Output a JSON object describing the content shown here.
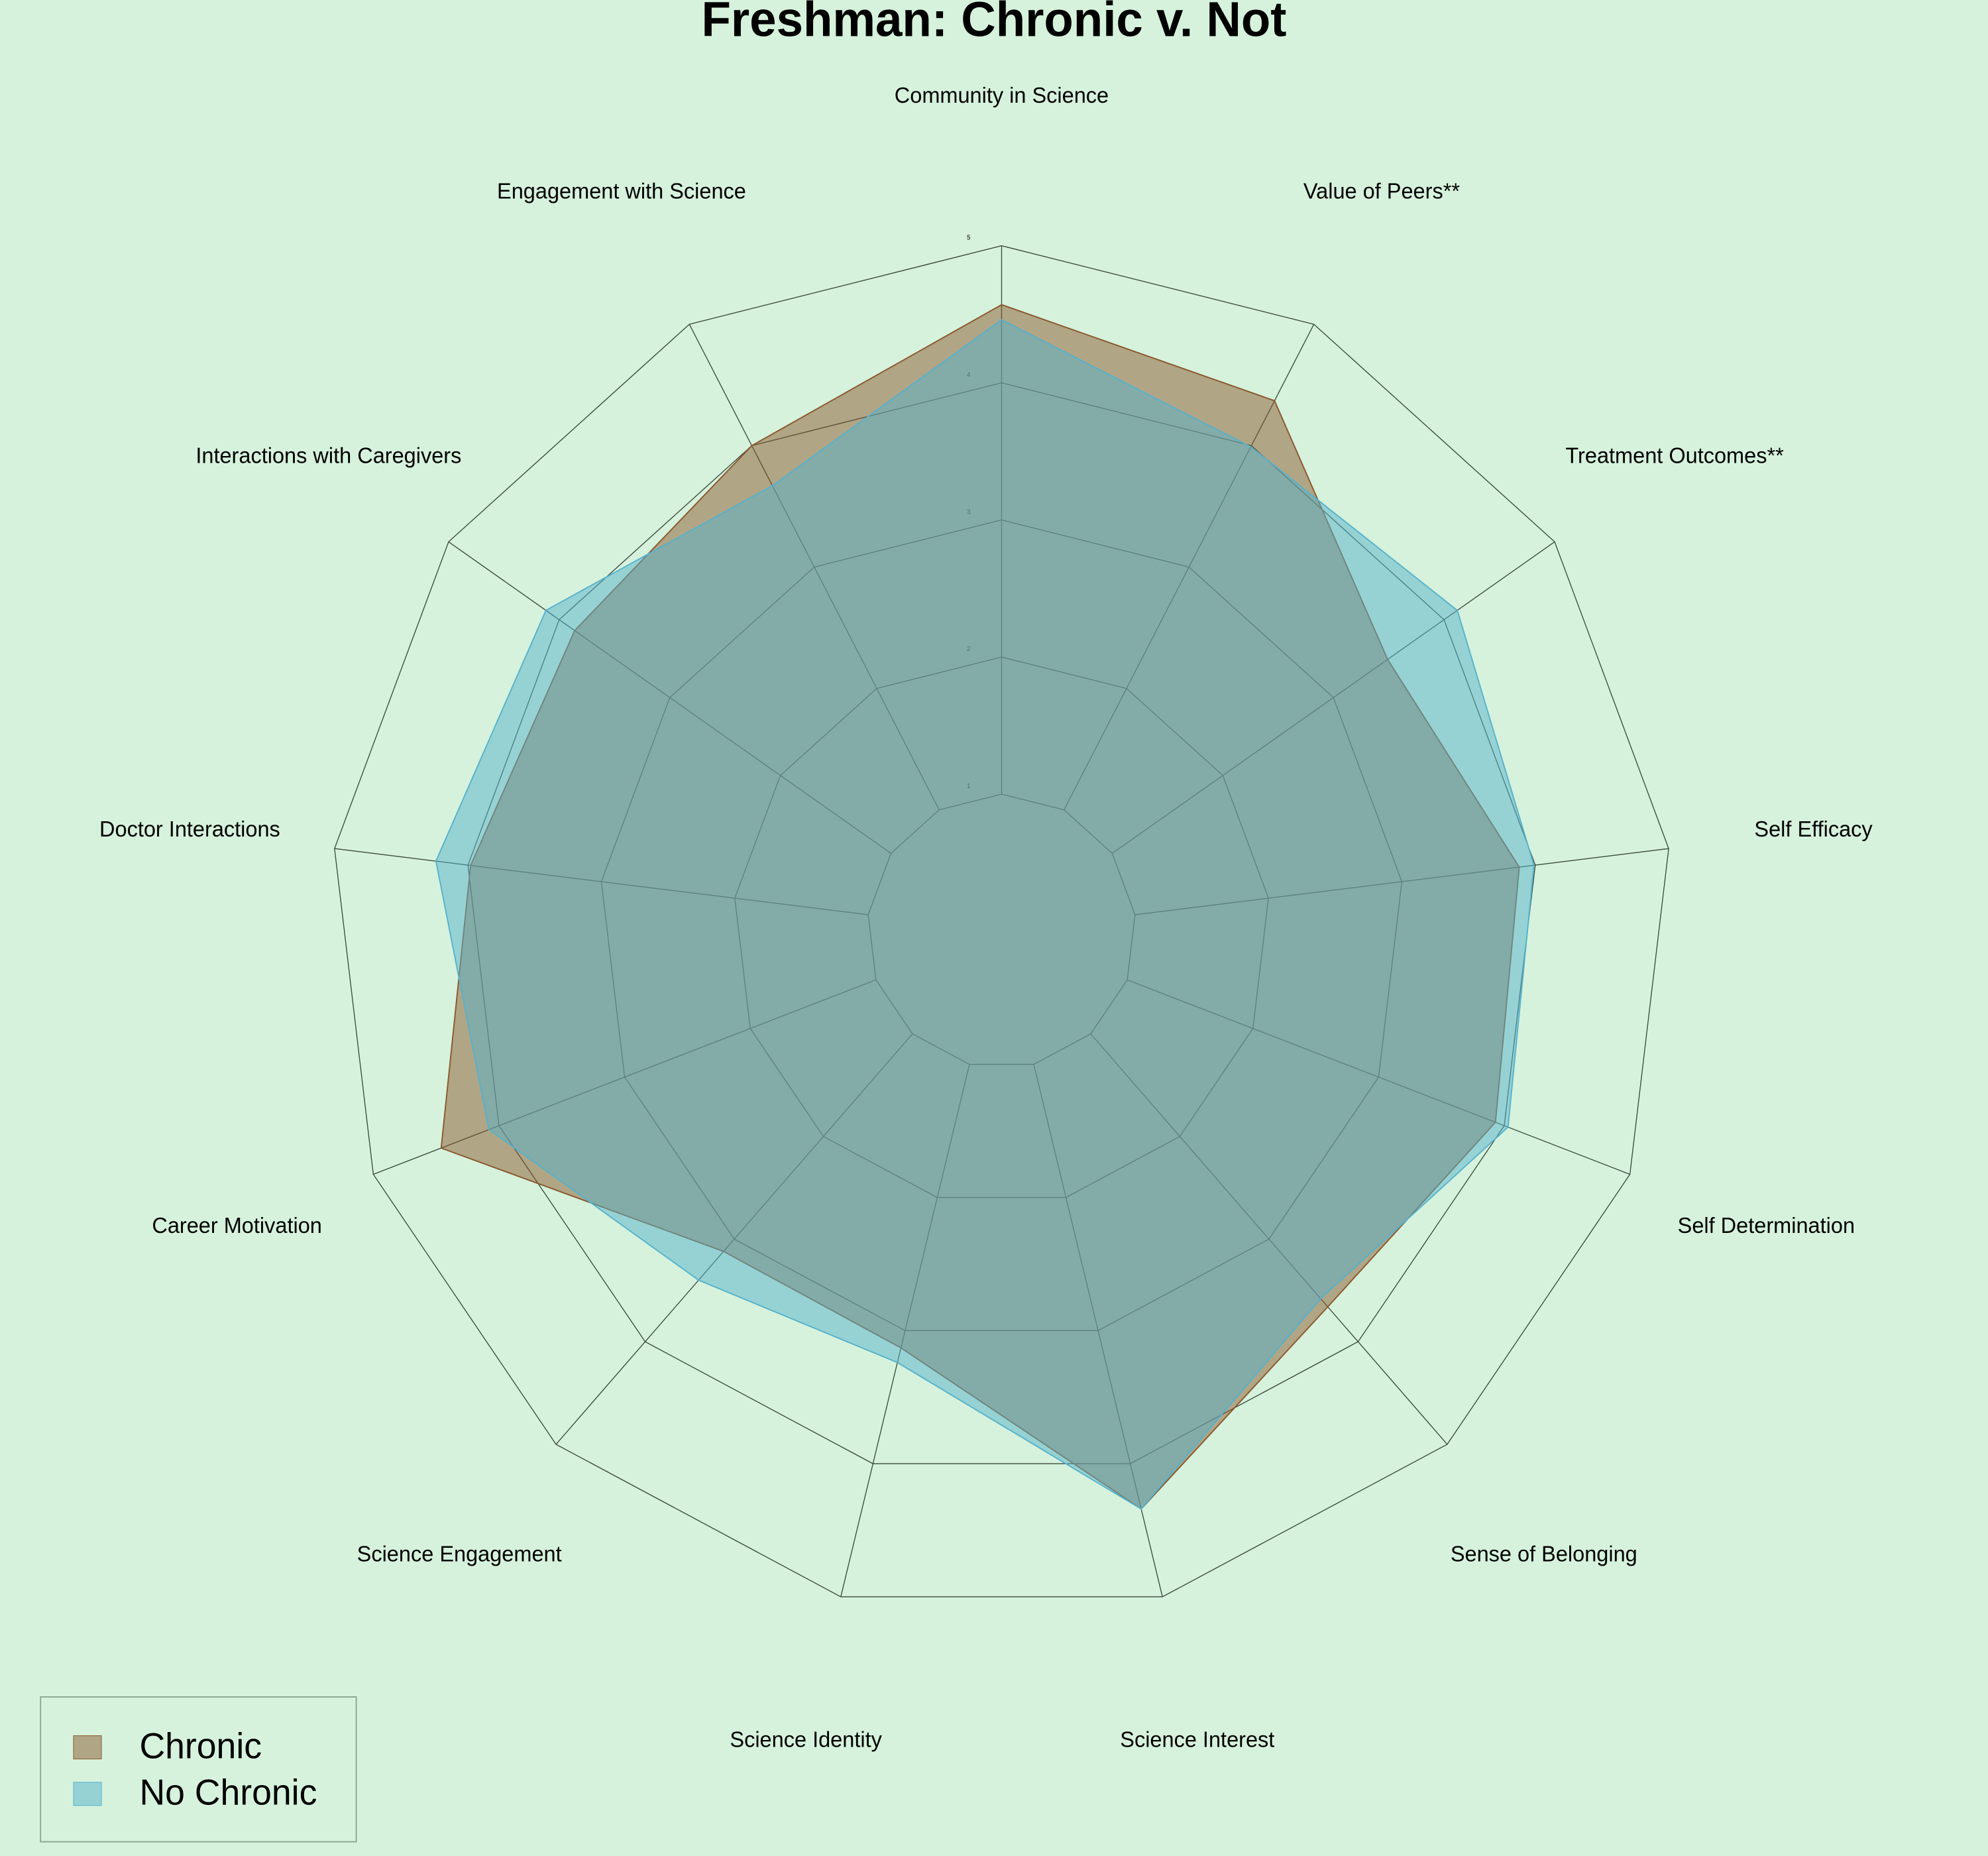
{
  "chart_data": {
    "type": "radar",
    "title": "Freshman: Chronic v. Not",
    "categories": [
      "Community in Science",
      "Value of Peers**",
      "Treatment Outcomes**",
      "Self Efficacy",
      "Self Determination",
      "Sense of Belonging",
      "Science Interest",
      "Science Identity",
      "Science Engagement",
      "Career Motivation",
      "Doctor Interactions",
      "Interactions with Caregivers",
      "Engagement with Science"
    ],
    "series": [
      {
        "name": "Chronic",
        "color": "#8a582e",
        "values": [
          4.57,
          4.37,
          3.49,
          3.88,
          3.93,
          3.66,
          4.34,
          3.13,
          3.12,
          4.46,
          3.98,
          3.86,
          4.0
        ]
      },
      {
        "name": "No Chronic",
        "color": "#56b2cc",
        "values": [
          4.46,
          3.99,
          4.12,
          3.99,
          4.03,
          3.58,
          4.34,
          3.24,
          3.4,
          4.08,
          4.24,
          4.12,
          3.67
        ]
      }
    ],
    "ylim": [
      0,
      5
    ],
    "yticks": [
      1,
      2,
      3,
      4,
      5
    ],
    "grid": true,
    "legend": "lower left"
  }
}
